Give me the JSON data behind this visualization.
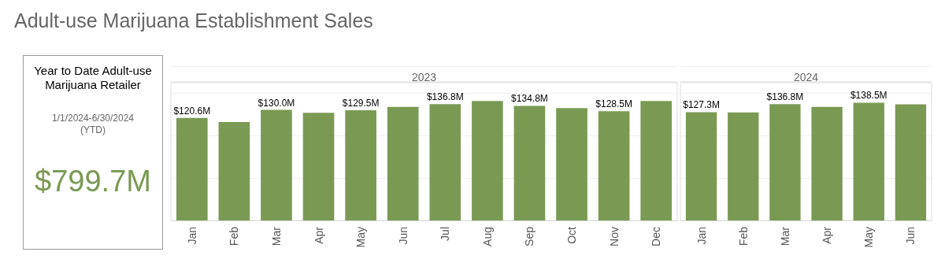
{
  "chart_data": [
    {
      "type": "other",
      "title": "Year to Date Adult-use Marijuana Retailer",
      "subtitle": "1/1/2024-6/30/2024 (YTD)",
      "annotations": [
        "$799.7M"
      ]
    },
    {
      "type": "bar",
      "title": "Adult-use Marijuana Establishment Sales",
      "subtitle": "2023",
      "categories": [
        "Jan",
        "Feb",
        "Mar",
        "Apr",
        "May",
        "Jun",
        "Jul",
        "Aug",
        "Sep",
        "Oct",
        "Nov",
        "Dec"
      ],
      "values": [
        120.6,
        115.7,
        130.0,
        126.6,
        129.5,
        133.6,
        136.8,
        140.5,
        134.8,
        132.1,
        128.5,
        140.5
      ],
      "value_labels": [
        "$120.6M",
        null,
        "$130.0M",
        null,
        "$129.5M",
        null,
        "$136.8M",
        null,
        "$134.8M",
        null,
        "$128.5M",
        null
      ],
      "color": "#7a9a53",
      "ylim": [
        0,
        162
      ],
      "yticks": [
        {
          "value": 0,
          "label": null
        },
        {
          "value": 50,
          "label": null
        },
        {
          "value": 100,
          "label": null
        },
        {
          "value": 150,
          "label": null
        }
      ],
      "grid": "y",
      "tick_labels": "x"
    },
    {
      "type": "bar",
      "subtitle": "2024",
      "categories": [
        "Jan",
        "Feb",
        "Mar",
        "Apr",
        "May",
        "Jun"
      ],
      "values": [
        127.3,
        127.0,
        136.8,
        133.6,
        138.5,
        136.5
      ],
      "value_labels": [
        "$127.3M",
        null,
        "$136.8M",
        null,
        "$138.5M",
        null
      ],
      "color": "#7a9a53",
      "ylim": [
        0,
        162
      ],
      "yticks": [
        {
          "value": 0,
          "label": null
        },
        {
          "value": 50,
          "label": null
        },
        {
          "value": 100,
          "label": null
        },
        {
          "value": 150,
          "label": null
        }
      ],
      "grid": "y",
      "tick_labels": "x"
    }
  ]
}
